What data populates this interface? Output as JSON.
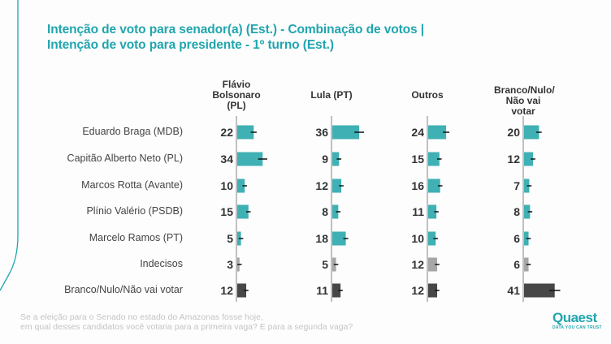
{
  "title": {
    "line1": "Intenção de voto para senador(a) (Est.)  - Combinação de votos |",
    "line2": "Intenção de voto para presidente - 1º turno (Est.)"
  },
  "footer": {
    "line1": "Se a eleição para o Senado no estado do Amazonas fosse hoje,",
    "line2": "em qual desses candidatos você votaria para a primeira vaga? E para a segunda vaga?"
  },
  "logo": {
    "name": "Quaest",
    "tagline": "DATA YOU CAN TRUST"
  },
  "colors": {
    "accent": "#21a5ae",
    "candidate_bar": "#3fb0b3",
    "undecided_bar": "#a6a6a6",
    "blank_bar": "#474747",
    "axis": "#c0c0c0",
    "error": "#111111"
  },
  "chart_data": {
    "type": "bar",
    "orientation": "horizontal",
    "layout": "small-multiples",
    "title": "Intenção de voto para senador(a) (Est.) - Combinação de votos | Intenção de voto para presidente - 1º turno (Est.)",
    "unit": "%",
    "categories": [
      "Eduardo Braga (MDB)",
      "Capitão Alberto Neto (PL)",
      "Marcos Rotta (Avante)",
      "Plínio Valério (PSDB)",
      "Marcelo Ramos (PT)",
      "Indecisos",
      "Branco/Nulo/Não vai votar"
    ],
    "category_types": [
      "candidate",
      "candidate",
      "candidate",
      "candidate",
      "candidate",
      "undecided",
      "blank"
    ],
    "series": [
      {
        "name": "Flávio Bolsonaro (PL)",
        "header_lines": [
          "Flávio",
          "Bolsonaro",
          "(PL)"
        ],
        "values": [
          22,
          34,
          10,
          15,
          5,
          3,
          12
        ]
      },
      {
        "name": "Lula (PT)",
        "header_lines": [
          "Lula (PT)"
        ],
        "values": [
          36,
          9,
          12,
          8,
          18,
          5,
          11
        ]
      },
      {
        "name": "Outros",
        "header_lines": [
          "Outros"
        ],
        "values": [
          24,
          15,
          16,
          11,
          10,
          12,
          12
        ]
      },
      {
        "name": "Branco/Nulo/Não vai votar",
        "header_lines": [
          "Branco/Nulo/",
          "Não vai votar"
        ],
        "values": [
          20,
          12,
          7,
          8,
          6,
          6,
          41
        ]
      }
    ],
    "error_bars": true,
    "xlim": [
      0,
      100
    ],
    "grid": false,
    "legend": "none"
  }
}
